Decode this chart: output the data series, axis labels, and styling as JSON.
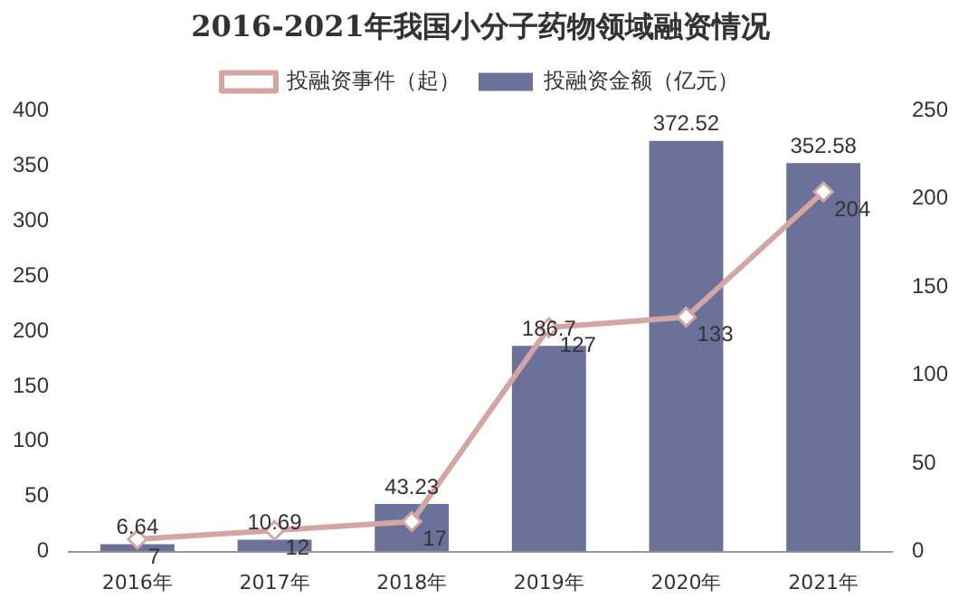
{
  "chart_data": {
    "type": "bar",
    "title": "2016-2021年我国小分子药物领域融资情况",
    "categories": [
      "2016年",
      "2017年",
      "2018年",
      "2019年",
      "2020年",
      "2021年"
    ],
    "series": [
      {
        "name": "投融资金额（亿元）",
        "color": "#6b7199",
        "values": [
          6.64,
          10.69,
          43.23,
          186.7,
          372.52,
          352.58
        ]
      },
      {
        "name": "投融资事件（起）",
        "color": "#d4a5a5",
        "type": "line",
        "axis": "y2",
        "values": [
          7,
          12,
          17,
          127,
          133,
          204
        ]
      }
    ],
    "ylim": [
      0,
      400
    ],
    "yticks": [
      0,
      50,
      100,
      150,
      200,
      250,
      300,
      350,
      400
    ],
    "y2lim": [
      0,
      250
    ],
    "y2ticks": [
      0,
      50,
      100,
      150,
      200,
      250
    ],
    "data_labels": true,
    "legend": "top",
    "grid": false,
    "marker": "diamond",
    "line_style": "solid"
  }
}
